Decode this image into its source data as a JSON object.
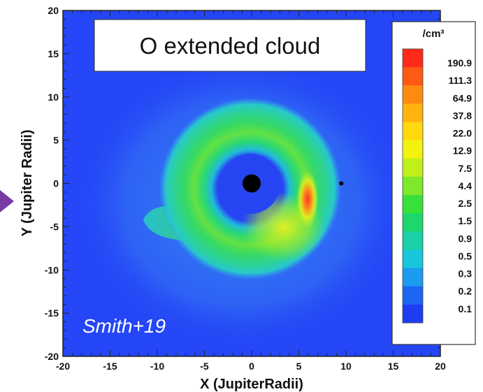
{
  "chart_data": {
    "type": "heatmap",
    "title": "O extended cloud",
    "annotation": "Smith+19",
    "xlabel": "X (JupiterRadii)",
    "ylabel": "Y (Jupiter Radii)",
    "xlim": [
      -20,
      20
    ],
    "ylim": [
      -20,
      20
    ],
    "x_ticks": [
      -20,
      -15,
      -10,
      -5,
      0,
      5,
      10,
      15,
      20
    ],
    "y_ticks": [
      -20,
      -15,
      -10,
      -5,
      0,
      5,
      10,
      15,
      20
    ],
    "x_tick_labels": [
      "-20",
      "-15",
      "-10",
      "-5",
      "0",
      "5",
      "10",
      "15",
      "20"
    ],
    "y_tick_labels": [
      "-20",
      "-15",
      "-10",
      "-5",
      "0",
      "5",
      "10",
      "15",
      "20"
    ],
    "colorbar": {
      "unit_label": "/cm³",
      "labels": [
        "190.9",
        "111.3",
        "64.9",
        "37.8",
        "22.0",
        "12.9",
        "7.5",
        "4.4",
        "2.5",
        "1.5",
        "0.9",
        "0.5",
        "0.3",
        "0.2",
        "0.1"
      ],
      "colors": [
        "#ff2a1a",
        "#ff5a14",
        "#ff8a10",
        "#ffb30e",
        "#ffd80e",
        "#f2f20e",
        "#bff01a",
        "#7fe82a",
        "#38e03a",
        "#1ed66c",
        "#1ad0a8",
        "#18c6dc",
        "#1a9cf0",
        "#1d66f4",
        "#1e3cf2"
      ]
    },
    "features": {
      "jupiter_center": [
        0,
        0
      ],
      "io_position": [
        9.5,
        0
      ],
      "hotspot_center": [
        6,
        -0.5
      ]
    },
    "grid": false,
    "legend": "colorbar-right"
  },
  "colors": {
    "background_field": "#1c3ef6",
    "plot_border": "#222222"
  },
  "decorations": {
    "left_marker": "triangle-pointer-icon"
  }
}
